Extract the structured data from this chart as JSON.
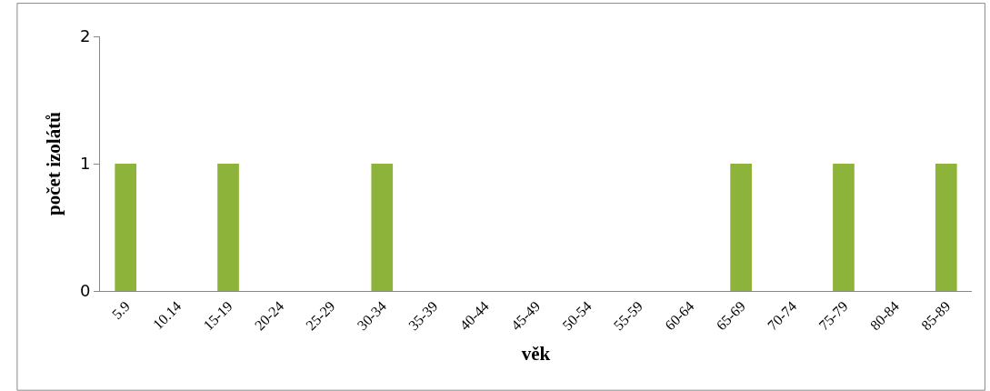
{
  "chart_data": {
    "type": "bar",
    "xlabel": "věk",
    "ylabel": "počet izolátů",
    "categories": [
      "5.9",
      "10.14",
      "15-19",
      "20-24",
      "25-29",
      "30-34",
      "35-39",
      "40-44",
      "45-49",
      "50-54",
      "55-59",
      "60-64",
      "65-69",
      "70-74",
      "75-79",
      "80-84",
      "85-89"
    ],
    "values": [
      1,
      0,
      1,
      0,
      0,
      1,
      0,
      0,
      0,
      0,
      0,
      0,
      1,
      0,
      1,
      0,
      1
    ],
    "color": "#8db33a",
    "ylim": [
      0,
      2
    ],
    "yticks": [
      0,
      1,
      2
    ]
  }
}
